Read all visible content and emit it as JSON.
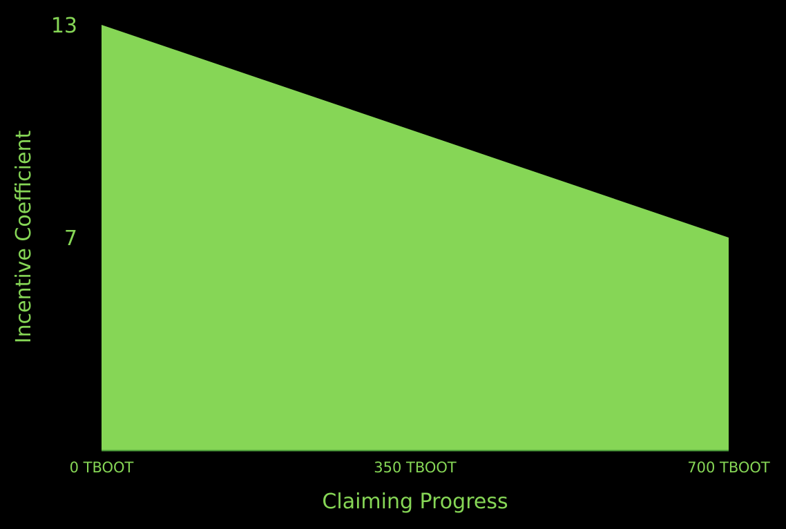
{
  "chart_data": {
    "type": "area",
    "x": [
      0,
      700
    ],
    "values": [
      13,
      7
    ],
    "xlim": [
      0,
      700
    ],
    "ylim": [
      1,
      13
    ],
    "x_ticks": [
      {
        "value": 0,
        "label": "0 TBOOT"
      },
      {
        "value": 350,
        "label": "350 TBOOT"
      },
      {
        "value": 700,
        "label": "700 TBOOT"
      }
    ],
    "y_ticks": [
      {
        "value": 7,
        "label": "7"
      },
      {
        "value": 13,
        "label": "13"
      }
    ],
    "xlabel": "Claiming Progress",
    "ylabel": "Incentive Coefficient",
    "grid": false,
    "legend": "none"
  },
  "colors": {
    "background": "#000000",
    "fill": "#86d656",
    "text": "#86d656",
    "baseline": "#4a9a3a"
  }
}
